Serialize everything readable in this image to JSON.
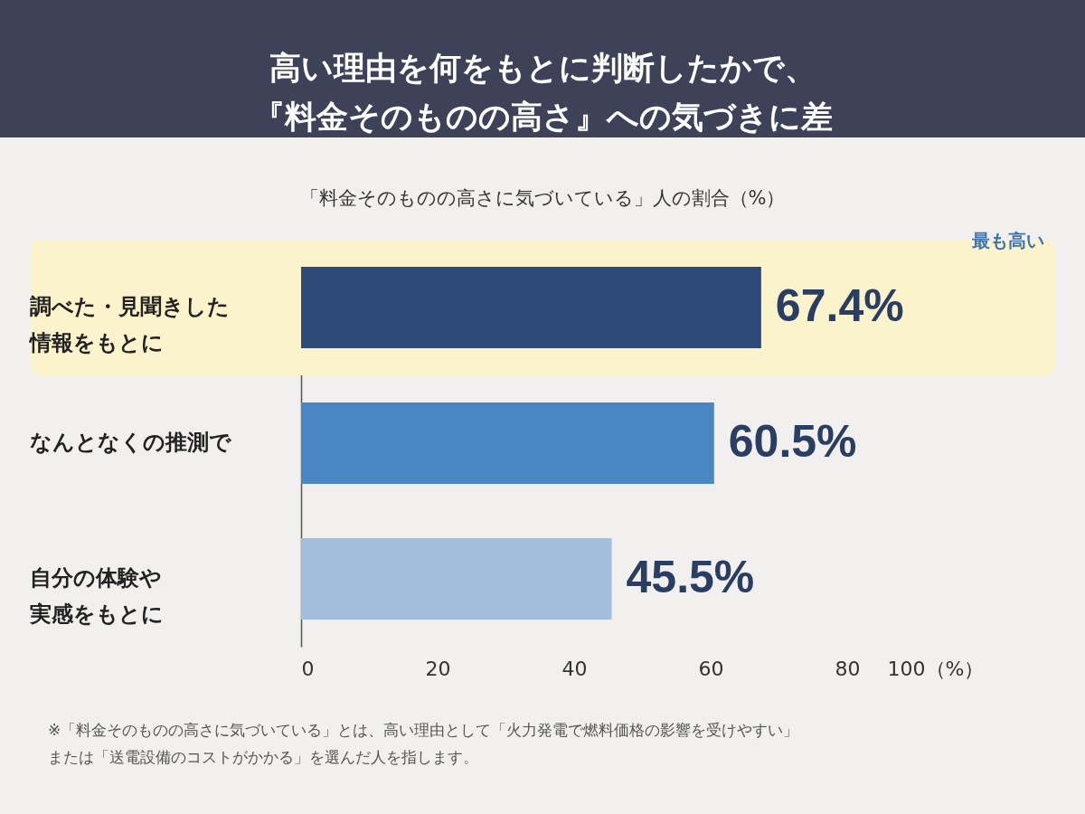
{
  "chart_data": {
    "type": "bar",
    "orientation": "horizontal",
    "title": "高い理由を何をもとに判断したかで、『料金そのものの高さ』への気づきに差",
    "subtitle": "「料金そのものの高さに気づいている」人の割合（%）",
    "categories": [
      "調べた・見聞きした情報をもとに",
      "なんとなくの推測で",
      "自分の体験や実感をもとに"
    ],
    "values": [
      67.4,
      60.5,
      45.5
    ],
    "value_labels": [
      "67.4%",
      "60.5%",
      "45.5%"
    ],
    "colors": [
      "#2e4a78",
      "#4a86c4",
      "#a2bedc"
    ],
    "xlim": [
      0,
      100
    ],
    "xticks": [
      0,
      20,
      40,
      60,
      80,
      {
        "value": 100,
        "label": "100（%）"
      }
    ],
    "grid": false,
    "bands": [
      {
        "axis": "y",
        "from": "調べた・見聞きした情報をもとに",
        "to": "調べた・見聞きした情報をもとに",
        "color": "#fbf3cc"
      }
    ],
    "annotations": [
      "最も高い",
      "※「料金そのものの高さに気づいている」とは、高い理由として「火力発電で燃料価格の影響を受けやすい」または「送電設備のコストがかかる」を選んだ人を指します。"
    ]
  }
}
